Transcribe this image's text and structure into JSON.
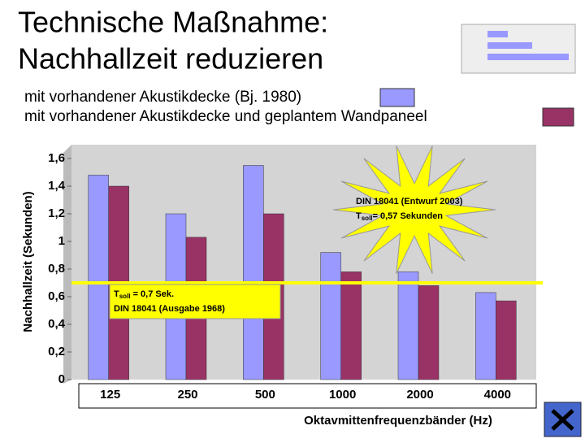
{
  "chart_data": {
    "type": "bar",
    "title": [
      "Technische Maßnahme:",
      "Nachhallzeit reduzieren"
    ],
    "x_label": "Oktavmittenfrequenzbänder (Hz)",
    "y_label": "Nachhallzeit (Sekunden)",
    "categories": [
      "125",
      "250",
      "500",
      "1000",
      "2000",
      "4000"
    ],
    "series": [
      {
        "name": "mit vorhandener Akustikdecke (Bj. 1980)",
        "color": "#9999ff",
        "values": [
          1.48,
          1.2,
          1.55,
          0.92,
          0.78,
          0.63
        ]
      },
      {
        "name": "mit vorhandener Akustikdecke und geplantem Wandpaneel",
        "color": "#993366",
        "values": [
          1.4,
          1.03,
          1.2,
          0.78,
          0.68,
          0.57
        ]
      }
    ],
    "ylim": [
      0,
      1.6
    ],
    "yticks": [
      0,
      {
        "value": 0.2,
        "label": "0,2"
      },
      {
        "value": 0.4,
        "label": "0,4"
      },
      {
        "value": 0.6,
        "label": "0,6"
      },
      {
        "value": 0.8,
        "label": "0,8"
      },
      1,
      {
        "value": 1.2,
        "label": "1,2"
      },
      {
        "value": 1.4,
        "label": "1,4"
      },
      {
        "value": 1.6,
        "label": "1,6"
      }
    ],
    "reference_line": {
      "value": 0.7,
      "color": "#ffff00"
    },
    "annotations": [
      {
        "lines": [
          {
            "main": "T",
            "sub": "soll",
            "rest": " = 0,7 Sek."
          },
          {
            "main": "DIN 18041 (Ausgabe 1968)"
          }
        ]
      },
      {
        "lines": [
          {
            "main": "DIN 18041 (Entwurf 2003)"
          },
          {
            "main": "T",
            "sub": "soll",
            "rest": "= 0,57 Sekunden"
          }
        ]
      }
    ]
  }
}
